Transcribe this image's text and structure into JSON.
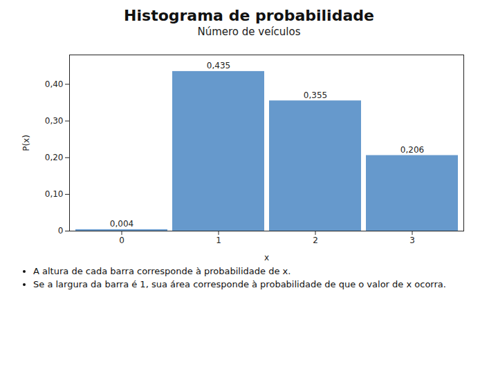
{
  "chart_data": {
    "type": "bar",
    "title": "Histograma de probabilidade",
    "subtitle": "Número de veículos",
    "categories": [
      0,
      1,
      2,
      3
    ],
    "values": [
      0.004,
      0.435,
      0.355,
      0.206
    ],
    "value_labels": [
      "0,004",
      "0,435",
      "0,355",
      "0,206"
    ],
    "data_labels": true,
    "color": "#6699CC",
    "xlabel": "x",
    "ylabel": "P(x)",
    "ylim": [
      0,
      0.48
    ],
    "yticks": [
      0,
      {
        "value": 0.1,
        "label": "0,10"
      },
      {
        "value": 0.2,
        "label": "0,20"
      },
      {
        "value": 0.3,
        "label": "0,30"
      },
      {
        "value": 0.4,
        "label": "0,40"
      }
    ],
    "grid": false,
    "annotations": [
      "A altura de cada barra corresponde à probabilidade de x.",
      "Se a largura da barra é 1, sua área corresponde à probabilidade de que o valor de x ocorra."
    ]
  }
}
